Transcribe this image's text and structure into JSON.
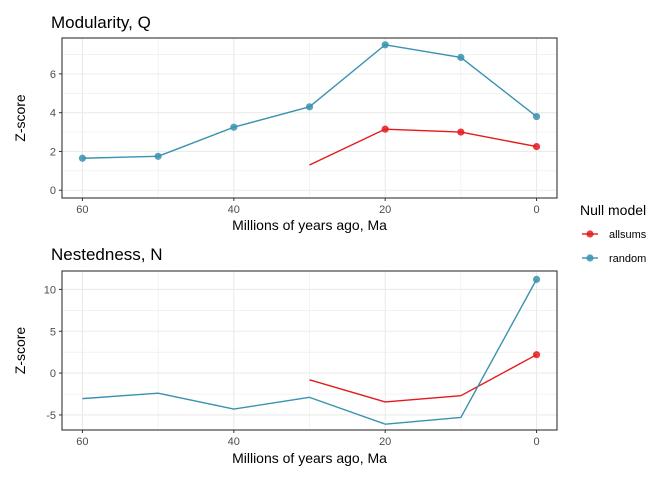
{
  "chart_data": [
    {
      "type": "line",
      "title": "Modularity, Q",
      "xlabel": "Millions of years ago, Ma",
      "ylabel": "Z-score",
      "x_reversed": true,
      "xlim": [
        62.7,
        -2.7
      ],
      "ylim": [
        -0.4,
        7.85
      ],
      "xticks": [
        60,
        40,
        20,
        0
      ],
      "yticks": [
        0,
        2,
        4,
        6
      ],
      "grid": true,
      "series": [
        {
          "name": "allsums",
          "color": "#E41A1C",
          "points": [
            {
              "x": 30,
              "y": 1.3,
              "marker": false
            },
            {
              "x": 20,
              "y": 3.15,
              "marker": true
            },
            {
              "x": 10,
              "y": 3.0,
              "marker": true
            },
            {
              "x": 0,
              "y": 2.25,
              "marker": true
            }
          ]
        },
        {
          "name": "random",
          "color": "#3A92AF",
          "points": [
            {
              "x": 60,
              "y": 1.65,
              "marker": true
            },
            {
              "x": 50,
              "y": 1.75,
              "marker": true
            },
            {
              "x": 40,
              "y": 3.25,
              "marker": true
            },
            {
              "x": 30,
              "y": 4.3,
              "marker": true
            },
            {
              "x": 20,
              "y": 7.5,
              "marker": true
            },
            {
              "x": 10,
              "y": 6.85,
              "marker": true
            },
            {
              "x": 0,
              "y": 3.8,
              "marker": true
            }
          ]
        }
      ]
    },
    {
      "type": "line",
      "title": "Nestedness, N",
      "xlabel": "Millions of years ago, Ma",
      "ylabel": "Z-score",
      "x_reversed": true,
      "xlim": [
        62.7,
        -2.7
      ],
      "ylim": [
        -6.8,
        12.2
      ],
      "xticks": [
        60,
        40,
        20,
        0
      ],
      "yticks": [
        -5,
        0,
        5,
        10
      ],
      "grid": true,
      "series": [
        {
          "name": "allsums",
          "color": "#E41A1C",
          "points": [
            {
              "x": 30,
              "y": -0.8,
              "marker": false
            },
            {
              "x": 20,
              "y": -3.45,
              "marker": false
            },
            {
              "x": 10,
              "y": -2.7,
              "marker": false
            },
            {
              "x": 0,
              "y": 2.2,
              "marker": true
            }
          ]
        },
        {
          "name": "random",
          "color": "#3A92AF",
          "points": [
            {
              "x": 60,
              "y": -3.05,
              "marker": false
            },
            {
              "x": 50,
              "y": -2.4,
              "marker": false
            },
            {
              "x": 40,
              "y": -4.3,
              "marker": false
            },
            {
              "x": 30,
              "y": -2.9,
              "marker": false
            },
            {
              "x": 20,
              "y": -6.1,
              "marker": false
            },
            {
              "x": 10,
              "y": -5.3,
              "marker": false
            },
            {
              "x": 0,
              "y": 11.2,
              "marker": true
            }
          ]
        }
      ]
    }
  ],
  "legend": {
    "title": "Null model",
    "placement": "right",
    "items": [
      {
        "label": "allsums",
        "color": "#E41A1C"
      },
      {
        "label": "random",
        "color": "#3A92AF"
      }
    ]
  }
}
